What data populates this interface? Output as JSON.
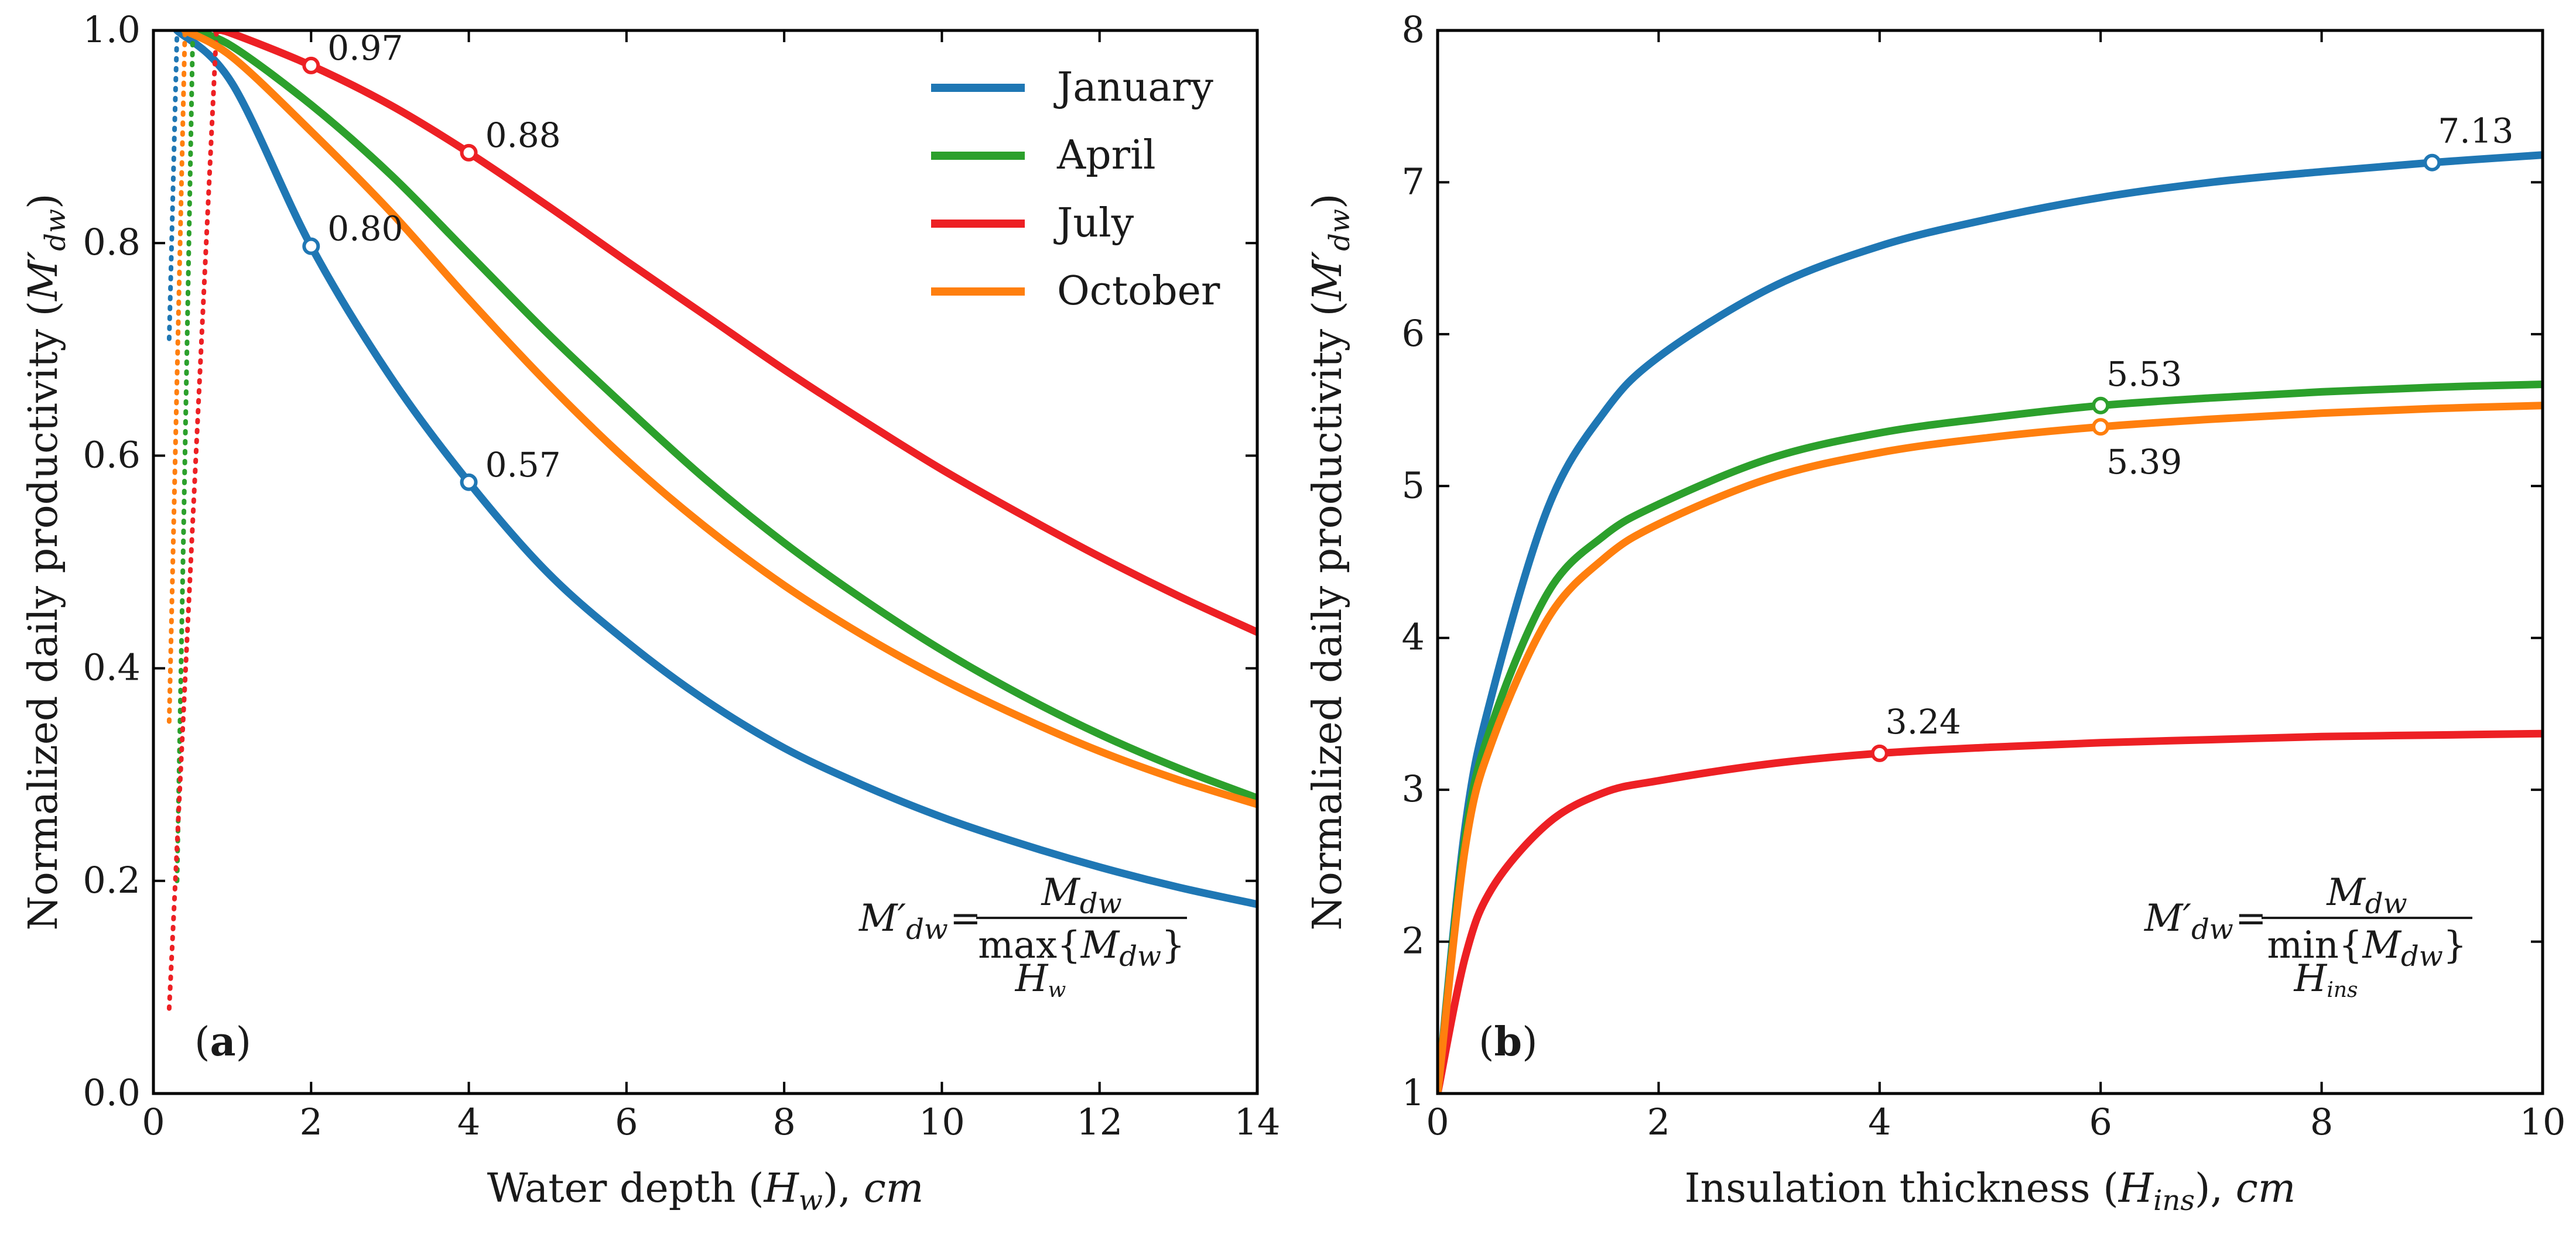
{
  "colors": {
    "January": "#1f77b4",
    "April": "#2ca02c",
    "July": "#ed2024",
    "October": "#ff7f0e"
  },
  "chart_data": [
    {
      "id": "a",
      "type": "line",
      "panel_label": "a",
      "xlabel_parts": [
        "Water depth (",
        "H",
        "w",
        "), ",
        "cm"
      ],
      "ylabel_parts": [
        "Normalized daily productivity (",
        "M′",
        "dw",
        ")"
      ],
      "xlim": [
        0,
        14
      ],
      "ylim": [
        0,
        1
      ],
      "xticks": [
        0,
        2,
        4,
        6,
        8,
        10,
        12,
        14
      ],
      "ytick_labels": [
        "0.0",
        "0.2",
        "0.4",
        "0.6",
        "0.8",
        "1.0"
      ],
      "ytick_values": [
        0,
        0.2,
        0.4,
        0.6,
        0.8,
        1.0
      ],
      "legend": [
        "January",
        "April",
        "July",
        "October"
      ],
      "legend_position": "top-right",
      "formula": {
        "lhs": "M′",
        "lhs_sub": "dw",
        "eq": "=",
        "num": "M",
        "num_sub": "dw",
        "op": "max",
        "den_arg": "M",
        "den_sub": "dw",
        "under": "H",
        "under_sub": "w"
      },
      "series": [
        {
          "name": "January",
          "x": [
            0.3,
            1,
            2,
            3,
            4,
            5,
            6,
            7,
            8,
            9,
            10,
            11,
            12,
            13,
            14
          ],
          "y": [
            1.0,
            0.95,
            0.797,
            0.675,
            0.575,
            0.49,
            0.425,
            0.37,
            0.325,
            0.29,
            0.26,
            0.235,
            0.213,
            0.194,
            0.178
          ],
          "dotted_x": [
            0.2,
            0.3
          ],
          "dotted_y": [
            0.71,
            1.0
          ]
        },
        {
          "name": "April",
          "x": [
            0.5,
            1,
            2,
            3,
            4,
            5,
            6,
            7,
            8,
            9,
            10,
            11,
            12,
            13,
            14
          ],
          "y": [
            1.0,
            0.985,
            0.93,
            0.865,
            0.79,
            0.715,
            0.645,
            0.578,
            0.518,
            0.465,
            0.417,
            0.375,
            0.338,
            0.306,
            0.278
          ],
          "dotted_x": [
            0.3,
            0.5
          ],
          "dotted_y": [
            0.2,
            1.0
          ]
        },
        {
          "name": "July",
          "x": [
            0.8,
            1,
            2,
            3,
            4,
            5,
            6,
            7,
            8,
            9,
            10,
            11,
            12,
            13,
            14
          ],
          "y": [
            1.0,
            0.997,
            0.967,
            0.93,
            0.885,
            0.835,
            0.783,
            0.732,
            0.681,
            0.633,
            0.587,
            0.545,
            0.505,
            0.468,
            0.434
          ],
          "dotted_x": [
            0.2,
            0.8
          ],
          "dotted_y": [
            0.08,
            1.0
          ]
        },
        {
          "name": "October",
          "x": [
            0.4,
            1,
            2,
            3,
            4,
            5,
            6,
            7,
            8,
            9,
            10,
            11,
            12,
            13,
            14
          ],
          "y": [
            1.0,
            0.975,
            0.905,
            0.83,
            0.747,
            0.668,
            0.596,
            0.533,
            0.478,
            0.431,
            0.39,
            0.354,
            0.322,
            0.295,
            0.272
          ],
          "dotted_x": [
            0.2,
            0.4
          ],
          "dotted_y": [
            0.35,
            1.0
          ]
        }
      ],
      "annotations": [
        {
          "series": "July",
          "x": 2,
          "y": 0.967,
          "label": "0.97",
          "pos": "right"
        },
        {
          "series": "July",
          "x": 4,
          "y": 0.885,
          "label": "0.88",
          "pos": "right"
        },
        {
          "series": "January",
          "x": 2,
          "y": 0.797,
          "label": "0.80",
          "pos": "right"
        },
        {
          "series": "January",
          "x": 4,
          "y": 0.575,
          "label": "0.57",
          "pos": "right"
        }
      ]
    },
    {
      "id": "b",
      "type": "line",
      "panel_label": "b",
      "xlabel_parts": [
        "Insulation thickness (",
        "H",
        "ins",
        "), ",
        "cm"
      ],
      "ylabel_parts": [
        "Normalized daily productivity (",
        "M′",
        "dw",
        ")"
      ],
      "xlim": [
        0,
        10
      ],
      "ylim": [
        1,
        8
      ],
      "xticks": [
        0,
        2,
        4,
        6,
        8,
        10
      ],
      "ytick_labels": [
        "1",
        "2",
        "3",
        "4",
        "5",
        "6",
        "7",
        "8"
      ],
      "ytick_values": [
        1,
        2,
        3,
        4,
        5,
        6,
        7,
        8
      ],
      "formula": {
        "lhs": "M′",
        "lhs_sub": "dw",
        "eq": "=",
        "num": "M",
        "num_sub": "dw",
        "op": "min",
        "den_arg": "M",
        "den_sub": "dw",
        "under": "H",
        "under_sub": "ins"
      },
      "series": [
        {
          "name": "January",
          "x": [
            0,
            0.25,
            0.5,
            1,
            1.5,
            2,
            3,
            4,
            5,
            6,
            7,
            8,
            9,
            10
          ],
          "y": [
            1.0,
            2.76,
            3.65,
            4.86,
            5.48,
            5.85,
            6.3,
            6.58,
            6.76,
            6.9,
            7.0,
            7.07,
            7.13,
            7.18
          ]
        },
        {
          "name": "April",
          "x": [
            0,
            0.25,
            0.5,
            1,
            1.5,
            2,
            3,
            4,
            5,
            6,
            7,
            8,
            9,
            10
          ],
          "y": [
            1.0,
            2.69,
            3.45,
            4.3,
            4.67,
            4.88,
            5.18,
            5.35,
            5.45,
            5.53,
            5.58,
            5.62,
            5.65,
            5.67
          ]
        },
        {
          "name": "July",
          "x": [
            0,
            0.25,
            0.5,
            1,
            1.5,
            2,
            3,
            4,
            5,
            6,
            7,
            8,
            9,
            10
          ],
          "y": [
            1.0,
            1.9,
            2.36,
            2.78,
            2.98,
            3.06,
            3.17,
            3.24,
            3.28,
            3.31,
            3.33,
            3.35,
            3.36,
            3.37
          ]
        },
        {
          "name": "October",
          "x": [
            0,
            0.25,
            0.5,
            1,
            1.5,
            2,
            3,
            4,
            5,
            6,
            7,
            8,
            9,
            10
          ],
          "y": [
            1.0,
            2.62,
            3.33,
            4.13,
            4.52,
            4.75,
            5.05,
            5.22,
            5.32,
            5.39,
            5.44,
            5.48,
            5.51,
            5.53
          ]
        }
      ],
      "annotations": [
        {
          "series": "January",
          "x": 9,
          "y": 7.13,
          "label": "7.13",
          "pos": "above"
        },
        {
          "series": "April",
          "x": 6,
          "y": 5.53,
          "label": "5.53",
          "pos": "above"
        },
        {
          "series": "October",
          "x": 6,
          "y": 5.39,
          "label": "5.39",
          "pos": "below"
        },
        {
          "series": "July",
          "x": 4,
          "y": 3.24,
          "label": "3.24",
          "pos": "above"
        }
      ]
    }
  ]
}
